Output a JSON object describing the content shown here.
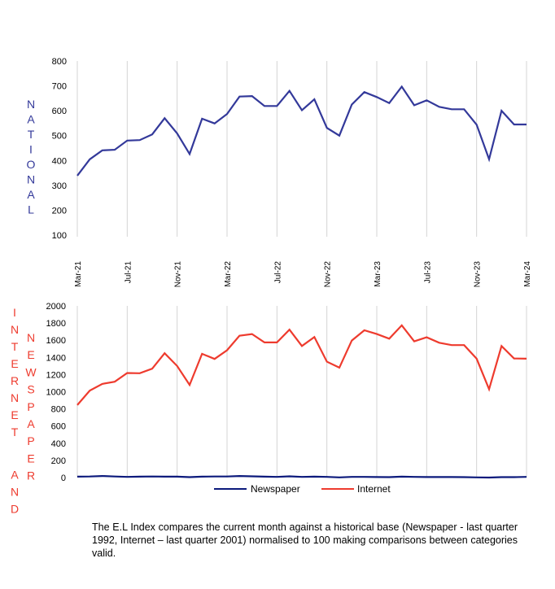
{
  "colors": {
    "national": "#33399a",
    "internet": "#ee3b2e",
    "newspaper": "#0c1a7c",
    "grid": "#d4d4d4",
    "side_label_top": "#33399a",
    "side_label_bottom": "#ee3b2e"
  },
  "chart_data": [
    {
      "type": "line",
      "name": "national",
      "side_label": "NATIONAL",
      "title": "",
      "xlabel": "",
      "ylabel": "NATIONAL",
      "ylim": [
        100,
        800
      ],
      "yticks": [
        800,
        700,
        600,
        500,
        400,
        300,
        200,
        100
      ],
      "grid": "vertical",
      "x": [
        "Mar-21",
        "Apr-21",
        "May-21",
        "Jun-21",
        "Jul-21",
        "Aug-21",
        "Sep-21",
        "Oct-21",
        "Nov-21",
        "Dec-21",
        "Jan-22",
        "Feb-22",
        "Mar-22",
        "Apr-22",
        "May-22",
        "Jun-22",
        "Jul-22",
        "Aug-22",
        "Sep-22",
        "Oct-22",
        "Nov-22",
        "Dec-22",
        "Jan-23",
        "Feb-23",
        "Mar-23",
        "Apr-23",
        "May-23",
        "Jun-23",
        "Jul-23",
        "Aug-23",
        "Sep-23",
        "Oct-23",
        "Nov-23",
        "Dec-23",
        "Jan-24",
        "Feb-24",
        "Mar-24"
      ],
      "xtick_labels": [
        "Mar-21",
        "Jul-21",
        "Nov-21",
        "Mar-22",
        "Jul-22",
        "Nov-22",
        "Mar-23",
        "Jul-23",
        "Nov-23",
        "Mar-24"
      ],
      "series": [
        {
          "name": "National",
          "values": [
            339,
            405,
            441,
            443,
            480,
            482,
            505,
            570,
            509,
            426,
            568,
            549,
            587,
            657,
            659,
            619,
            619,
            680,
            602,
            646,
            531,
            500,
            625,
            675,
            655,
            631,
            697,
            622,
            642,
            616,
            606,
            606,
            544,
            405,
            600,
            545,
            545
          ]
        }
      ]
    },
    {
      "type": "line",
      "name": "internet-and-newspaper",
      "side_label_1": "INTERNET AND",
      "side_label_2": "NEWSPAPER",
      "title": "",
      "xlabel": "",
      "ylabel": "INTERNET AND NEWSPAPER",
      "ylim": [
        0,
        2000
      ],
      "yticks": [
        2000,
        1800,
        1600,
        1400,
        1200,
        1000,
        800,
        600,
        400,
        200,
        0
      ],
      "grid": "vertical",
      "legend": "bottom",
      "x": [
        "Mar-21",
        "Apr-21",
        "May-21",
        "Jun-21",
        "Jul-21",
        "Aug-21",
        "Sep-21",
        "Oct-21",
        "Nov-21",
        "Dec-21",
        "Jan-22",
        "Feb-22",
        "Mar-22",
        "Apr-22",
        "May-22",
        "Jun-22",
        "Jul-22",
        "Aug-22",
        "Sep-22",
        "Oct-22",
        "Nov-22",
        "Dec-22",
        "Jan-23",
        "Feb-23",
        "Mar-23",
        "Apr-23",
        "May-23",
        "Jun-23",
        "Jul-23",
        "Aug-23",
        "Sep-23",
        "Oct-23",
        "Nov-23",
        "Dec-23",
        "Jan-24",
        "Feb-24",
        "Mar-24"
      ],
      "series": [
        {
          "name": "Newspaper",
          "values": [
            10,
            12,
            18,
            12,
            8,
            10,
            12,
            10,
            10,
            5,
            10,
            12,
            12,
            18,
            14,
            10,
            8,
            14,
            8,
            10,
            8,
            2,
            8,
            8,
            6,
            5,
            10,
            8,
            6,
            6,
            6,
            5,
            2,
            0,
            5,
            5,
            8
          ]
        },
        {
          "name": "Internet",
          "values": [
            845,
            1013,
            1091,
            1117,
            1218,
            1215,
            1268,
            1448,
            1300,
            1080,
            1442,
            1382,
            1483,
            1653,
            1672,
            1574,
            1574,
            1723,
            1533,
            1637,
            1350,
            1281,
            1596,
            1716,
            1672,
            1618,
            1773,
            1587,
            1634,
            1571,
            1543,
            1543,
            1385,
            1029,
            1533,
            1388,
            1385
          ]
        }
      ]
    }
  ],
  "footnote": "The E.L Index compares the current month against a historical base (Newspaper - last quarter 1992, Internet – last quarter 2001) normalised to 100 making comparisons between categories valid."
}
